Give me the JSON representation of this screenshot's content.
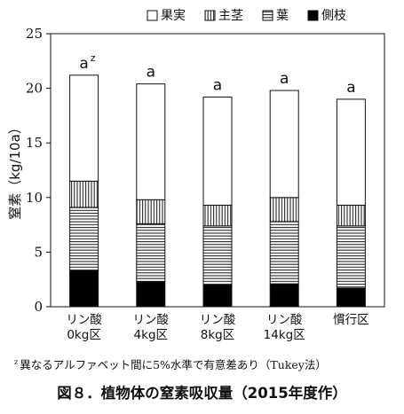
{
  "figure_caption": "図８．植物体の窒素吸収量（2015年度作）",
  "footnote": {
    "marker": "z",
    "text": "異なるアルファベット間に5%水準で有意差あり（Tukey法）"
  },
  "chart_data": {
    "type": "bar",
    "stacked": true,
    "categories": [
      [
        "リン酸",
        "0kg区"
      ],
      [
        "リン酸",
        "4kg区"
      ],
      [
        "リン酸",
        "8kg区"
      ],
      [
        "リン酸",
        "14kg区"
      ],
      [
        "慣行区"
      ]
    ],
    "series": [
      {
        "name": "側枝",
        "pattern": "solid-black",
        "values": [
          3.3,
          2.3,
          2.0,
          2.1,
          1.7
        ]
      },
      {
        "name": "葉",
        "pattern": "horizontal-lines",
        "values": [
          5.8,
          5.3,
          5.4,
          5.7,
          5.7
        ]
      },
      {
        "name": "主茎",
        "pattern": "vertical-lines",
        "values": [
          2.4,
          2.2,
          1.9,
          2.2,
          1.9
        ]
      },
      {
        "name": "果実",
        "pattern": "white",
        "values": [
          9.7,
          10.6,
          9.9,
          9.8,
          9.7
        ]
      }
    ],
    "legend_order": [
      "果実",
      "主茎",
      "葉",
      "側枝"
    ],
    "legend_position": "top",
    "significance_letters": [
      "a",
      "a",
      "a",
      "a",
      "a"
    ],
    "first_letter_superscript": "z",
    "ylabel": "窒素（kg/10a）",
    "ylim": [
      0,
      25
    ],
    "yticks": [
      0,
      5,
      10,
      15,
      20,
      25
    ],
    "grid": false
  }
}
